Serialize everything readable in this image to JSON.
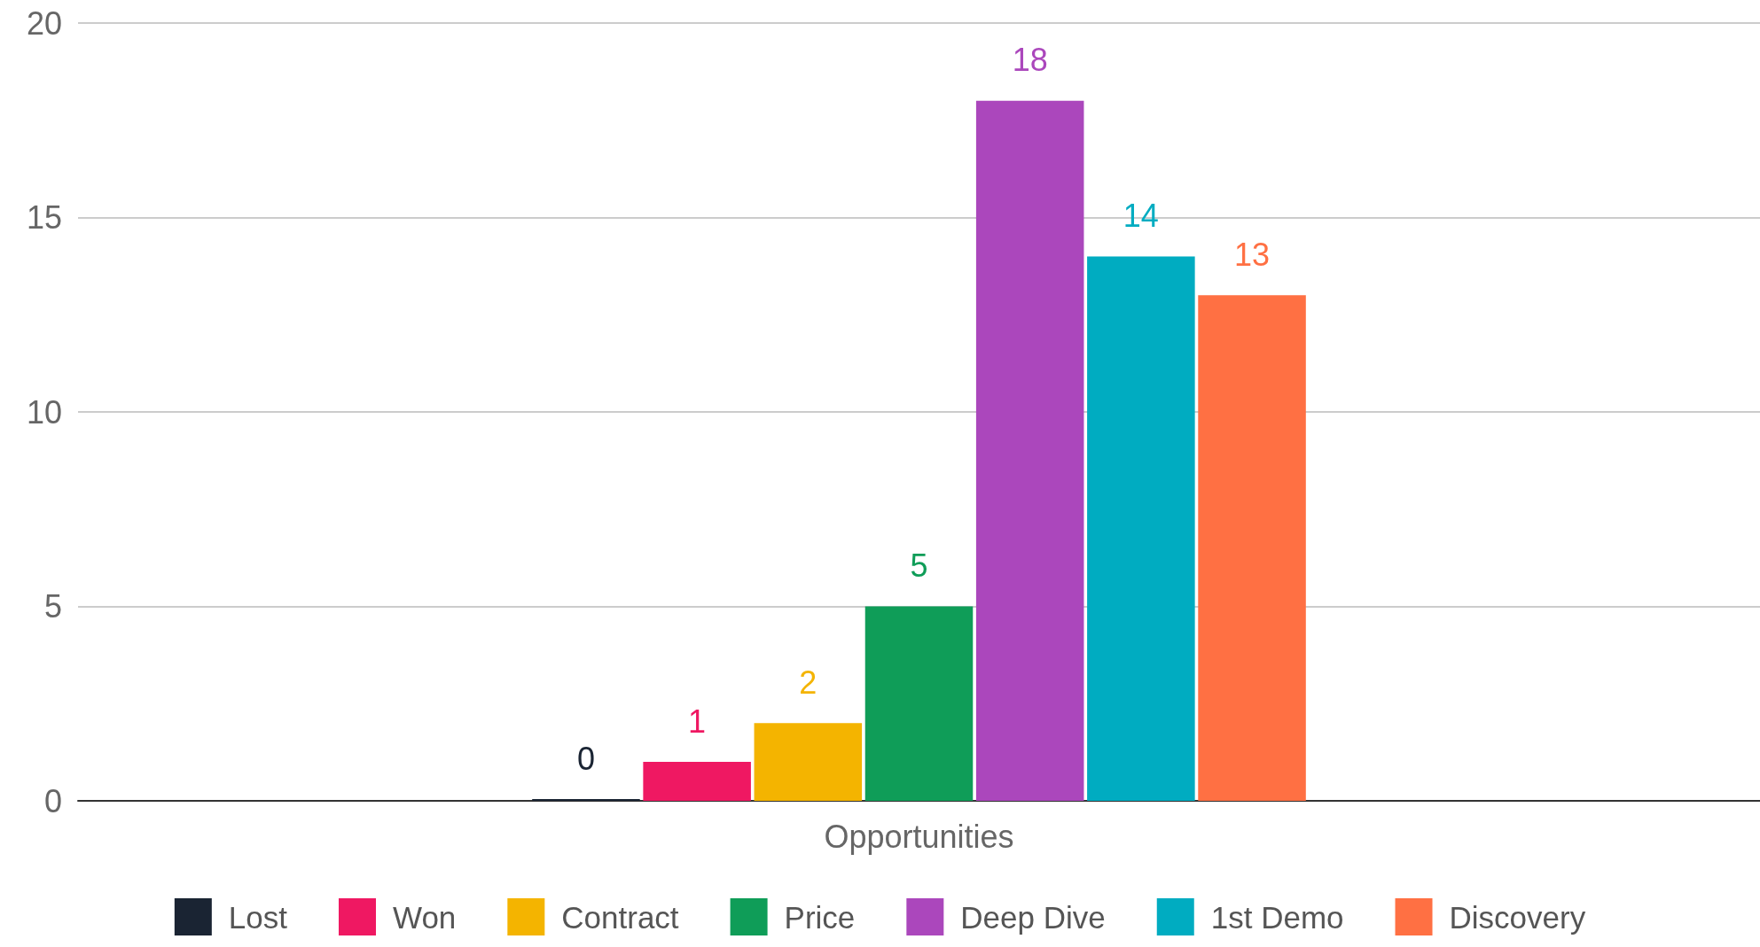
{
  "chart_data": {
    "type": "bar",
    "categories": [
      "Opportunities"
    ],
    "series": [
      {
        "name": "Lost",
        "color": "#1a2433",
        "values": [
          0
        ]
      },
      {
        "name": "Won",
        "color": "#ef1862",
        "values": [
          1
        ]
      },
      {
        "name": "Contract",
        "color": "#f4b400",
        "values": [
          2
        ]
      },
      {
        "name": "Price",
        "color": "#0f9d58",
        "values": [
          5
        ]
      },
      {
        "name": "Deep Dive",
        "color": "#ab47bc",
        "values": [
          18
        ]
      },
      {
        "name": "1st Demo",
        "color": "#00acc1",
        "values": [
          14
        ]
      },
      {
        "name": "Discovery",
        "color": "#ff7043",
        "values": [
          13
        ]
      }
    ],
    "ylim": [
      0,
      20
    ],
    "yticks": [
      0,
      5,
      10,
      15,
      20
    ],
    "grid": "y",
    "legend": "bottom",
    "data_labels": true
  }
}
